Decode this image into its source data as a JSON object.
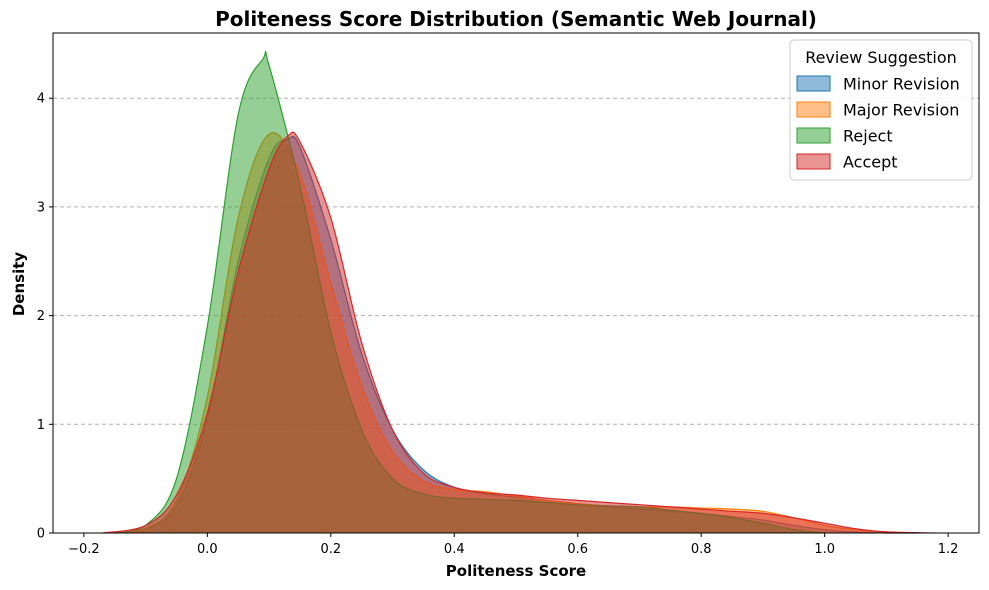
{
  "chart_data": {
    "type": "area",
    "title": "Politeness Score Distribution (Semantic Web Journal)",
    "xlabel": "Politeness Score",
    "ylabel": "Density",
    "xlim": [
      -0.25,
      1.25
    ],
    "ylim": [
      0,
      4.6
    ],
    "xticks": [
      -0.2,
      0.0,
      0.2,
      0.4,
      0.6,
      0.8,
      1.0,
      1.2
    ],
    "xtick_labels": [
      "−0.2",
      "0.0",
      "0.2",
      "0.4",
      "0.6",
      "0.8",
      "1.0",
      "1.2"
    ],
    "yticks": [
      0,
      1,
      2,
      3,
      4
    ],
    "ytick_labels": [
      "0",
      "1",
      "2",
      "3",
      "4"
    ],
    "grid": "y-dashed",
    "legend": {
      "title": "Review Suggestion",
      "placement": "top-right"
    },
    "series": [
      {
        "name": "Minor Revision",
        "color": "#1f77b4",
        "x": [
          -0.15,
          -0.1,
          -0.05,
          0.0,
          0.05,
          0.1,
          0.13,
          0.15,
          0.2,
          0.25,
          0.3,
          0.35,
          0.4,
          0.45,
          0.5,
          0.55,
          0.6,
          0.65,
          0.7,
          0.75,
          0.8,
          0.85,
          0.9,
          0.95,
          1.0,
          1.05,
          1.1,
          1.15
        ],
        "y": [
          0.0,
          0.04,
          0.25,
          1.05,
          2.5,
          3.45,
          3.62,
          3.55,
          2.7,
          1.65,
          0.95,
          0.58,
          0.42,
          0.36,
          0.33,
          0.3,
          0.27,
          0.24,
          0.22,
          0.2,
          0.18,
          0.15,
          0.12,
          0.07,
          0.03,
          0.01,
          0.0,
          0.0
        ]
      },
      {
        "name": "Major Revision",
        "color": "#ff7f0e",
        "x": [
          -0.15,
          -0.1,
          -0.05,
          0.0,
          0.05,
          0.1,
          0.15,
          0.2,
          0.25,
          0.3,
          0.35,
          0.4,
          0.45,
          0.5,
          0.55,
          0.6,
          0.65,
          0.7,
          0.75,
          0.8,
          0.85,
          0.9,
          0.95,
          1.0,
          1.05,
          1.1,
          1.15
        ],
        "y": [
          0.0,
          0.04,
          0.3,
          1.25,
          2.9,
          3.67,
          3.3,
          2.3,
          1.35,
          0.75,
          0.48,
          0.4,
          0.38,
          0.34,
          0.3,
          0.27,
          0.25,
          0.24,
          0.24,
          0.23,
          0.22,
          0.2,
          0.14,
          0.07,
          0.03,
          0.01,
          0.0
        ]
      },
      {
        "name": "Reject",
        "color": "#2ca02c",
        "x": [
          -0.15,
          -0.1,
          -0.05,
          0.0,
          0.05,
          0.09,
          0.1,
          0.15,
          0.2,
          0.25,
          0.3,
          0.35,
          0.4,
          0.45,
          0.5,
          0.55,
          0.6,
          0.65,
          0.7,
          0.75,
          0.8,
          0.85,
          0.9,
          0.95,
          1.0
        ],
        "y": [
          0.0,
          0.07,
          0.5,
          1.9,
          3.85,
          4.36,
          4.3,
          3.2,
          1.85,
          0.95,
          0.5,
          0.36,
          0.32,
          0.31,
          0.3,
          0.28,
          0.26,
          0.25,
          0.24,
          0.21,
          0.18,
          0.14,
          0.09,
          0.03,
          0.0
        ]
      },
      {
        "name": "Accept",
        "color": "#d62728",
        "x": [
          -0.17,
          -0.1,
          -0.05,
          0.0,
          0.05,
          0.1,
          0.13,
          0.15,
          0.2,
          0.25,
          0.3,
          0.35,
          0.4,
          0.45,
          0.5,
          0.55,
          0.6,
          0.65,
          0.7,
          0.75,
          0.8,
          0.85,
          0.9,
          0.95,
          1.0,
          1.05,
          1.1,
          1.18
        ],
        "y": [
          0.0,
          0.07,
          0.35,
          1.1,
          2.4,
          3.35,
          3.65,
          3.6,
          2.9,
          1.75,
          0.95,
          0.55,
          0.42,
          0.37,
          0.35,
          0.32,
          0.3,
          0.28,
          0.26,
          0.24,
          0.22,
          0.2,
          0.18,
          0.14,
          0.09,
          0.04,
          0.01,
          0.0
        ]
      }
    ]
  }
}
